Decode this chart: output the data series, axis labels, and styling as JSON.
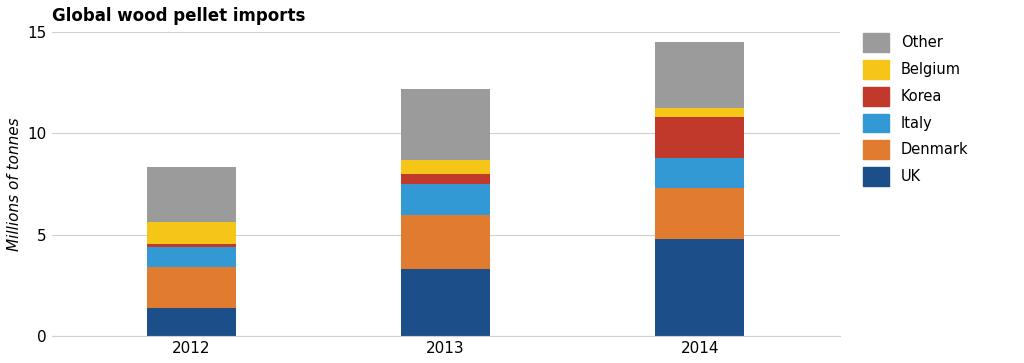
{
  "title": "Global wood pellet imports",
  "ylabel": "Millions of tonnes",
  "years": [
    "2012",
    "2013",
    "2014"
  ],
  "categories": [
    "UK",
    "Denmark",
    "Italy",
    "Korea",
    "Belgium",
    "Other"
  ],
  "colors": [
    "#1c4f8a",
    "#e07b30",
    "#3399d4",
    "#c0392b",
    "#f5c518",
    "#9b9b9b"
  ],
  "values": {
    "UK": [
      1.4,
      3.3,
      4.8
    ],
    "Denmark": [
      2.0,
      2.7,
      2.5
    ],
    "Italy": [
      1.0,
      1.5,
      1.5
    ],
    "Korea": [
      0.15,
      0.5,
      2.0
    ],
    "Belgium": [
      1.1,
      0.7,
      0.45
    ],
    "Other": [
      2.7,
      3.5,
      3.25
    ]
  },
  "ylim": [
    0,
    15
  ],
  "yticks": [
    0,
    5,
    10,
    15
  ],
  "background_color": "#ffffff",
  "bar_width": 0.35,
  "title_fontsize": 12,
  "legend_fontsize": 10.5,
  "tick_fontsize": 11
}
